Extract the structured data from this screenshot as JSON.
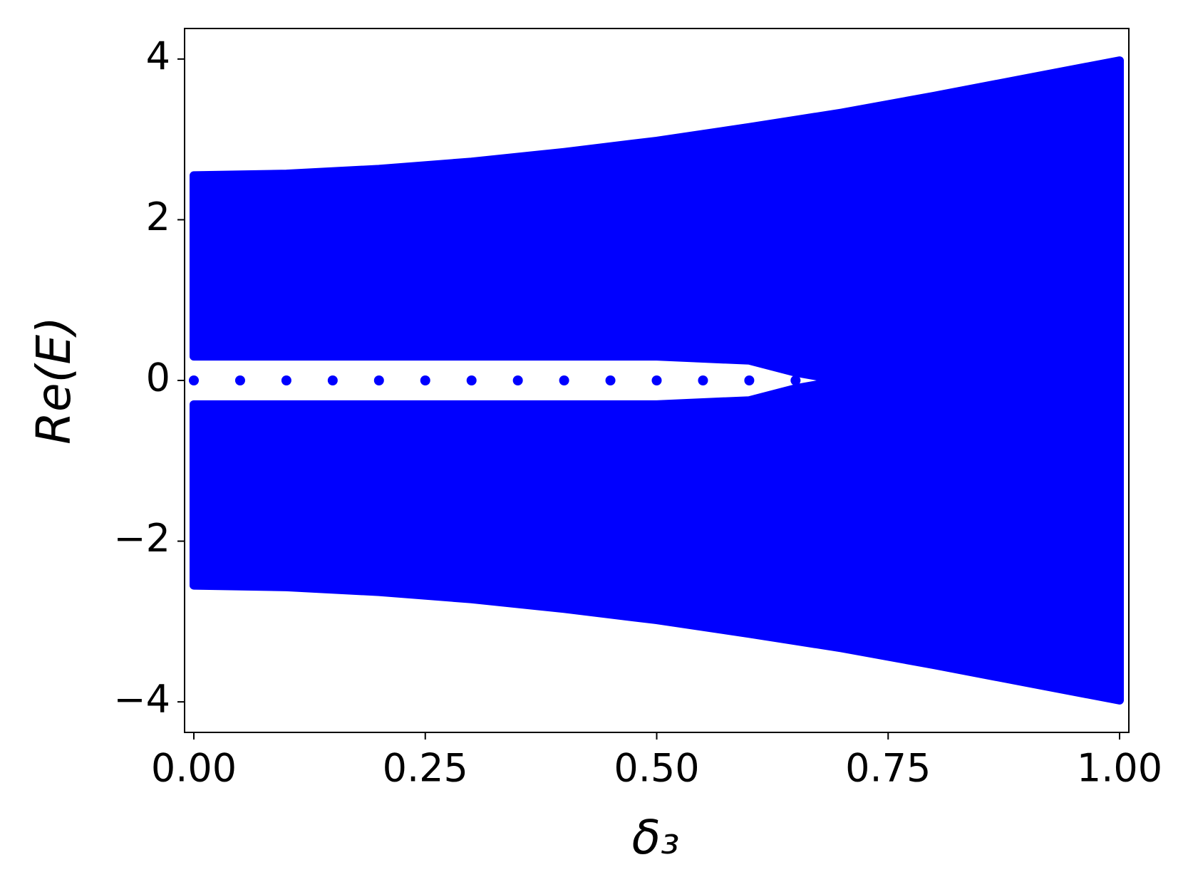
{
  "chart_data": {
    "type": "band",
    "xlabel": "δ₃",
    "ylabel": "Re(E)",
    "x": [
      0,
      0.1,
      0.2,
      0.3,
      0.4,
      0.5,
      0.6,
      0.65,
      0.7,
      0.8,
      0.9,
      1.0
    ],
    "series": [
      {
        "color": "#0000ff",
        "upper": [
          2.55,
          2.57,
          2.63,
          2.72,
          2.84,
          2.98,
          3.15,
          3.24,
          3.33,
          3.54,
          3.76,
          3.98
        ],
        "lower": [
          0.3,
          0.3,
          0.3,
          0.3,
          0.3,
          0.3,
          0.25,
          0.1,
          0,
          0,
          0,
          0
        ]
      },
      {
        "color": "#0000ff",
        "upper": [
          -0.3,
          -0.3,
          -0.3,
          -0.3,
          -0.3,
          -0.3,
          -0.25,
          -0.1,
          0,
          0,
          0,
          0
        ],
        "lower": [
          -2.55,
          -2.57,
          -2.63,
          -2.72,
          -2.84,
          -2.98,
          -3.15,
          -3.24,
          -3.33,
          -3.54,
          -3.76,
          -3.98
        ]
      }
    ],
    "zero_modes": {
      "color": "#0000ff",
      "x": [
        0,
        0.05,
        0.1,
        0.15,
        0.2,
        0.25,
        0.3,
        0.35,
        0.4,
        0.45,
        0.5,
        0.55,
        0.6,
        0.65
      ],
      "values": [
        0,
        0,
        0,
        0,
        0,
        0,
        0,
        0,
        0,
        0,
        0,
        0,
        0,
        0
      ]
    },
    "xlim": [
      -0.01,
      1.01
    ],
    "ylim": [
      -4.38,
      4.38
    ],
    "xticks": [
      {
        "value": 0,
        "label": "0.00"
      },
      {
        "value": 0.25,
        "label": "0.25"
      },
      {
        "value": 0.5,
        "label": "0.50"
      },
      {
        "value": 0.75,
        "label": "0.75"
      },
      {
        "value": 1,
        "label": "1.00"
      }
    ],
    "yticks": [
      {
        "value": -4,
        "label": "−4"
      },
      {
        "value": -2,
        "label": "−2"
      },
      0,
      2,
      4
    ]
  }
}
